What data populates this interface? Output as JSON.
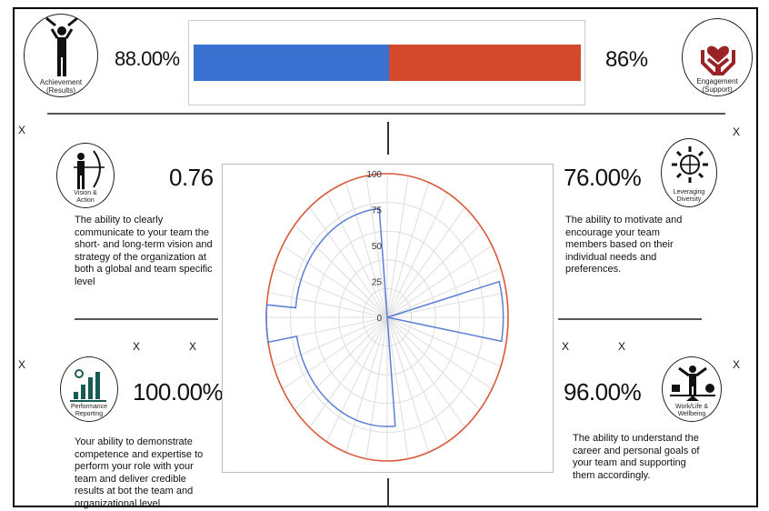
{
  "header": {
    "left_value": "88.00%",
    "right_value": "86%"
  },
  "icons": {
    "achievement": {
      "name": "achievement-person-icon",
      "label1": "Achievement",
      "label2": "(Results)"
    },
    "engagement": {
      "name": "heart-hands-icon",
      "label1": "Engagement",
      "label2": "(Support)"
    },
    "vision": {
      "name": "archer-icon",
      "label1": "Vision &",
      "label2": "Action"
    },
    "diversity": {
      "name": "diversity-globe-icon",
      "label1": "Leveraging",
      "label2": "Diversity"
    },
    "performance": {
      "name": "performance-chart-icon",
      "label1": "Performance",
      "label2": "Reporting"
    },
    "worklife": {
      "name": "balance-person-icon",
      "label1": "Work/Life &",
      "label2": "Wellbeing"
    }
  },
  "quadrants": {
    "vision": {
      "value": "0.76",
      "desc": "The ability to clearly communicate to your team the short- and long-term vision and strategy of the organization at both a global and team specific level"
    },
    "diversity": {
      "value": "76.00%",
      "desc": "The ability to motivate and encourage your team members based on their individual needs and preferences."
    },
    "performance": {
      "value": "100.00%",
      "desc": "Your ability to demonstrate competence and expertise to perform your role with your team and deliver credible results at bot the team and organizational level."
    },
    "worklife": {
      "value": "96.00%",
      "desc": "The ability to understand the career and personal goals of your team and supporting them accordingly."
    }
  },
  "marks": {
    "x": "X"
  },
  "colors": {
    "blue": "#3a70d0",
    "red": "#d2492c",
    "radar_outer": "#d9583a",
    "radar_inner": "#5b7fd6"
  },
  "chart_data": [
    {
      "type": "bar",
      "orientation": "horizontal-stacked",
      "series": [
        {
          "name": "",
          "values": [
            88
          ],
          "color": "#3a70d0"
        },
        {
          "name": "",
          "values": [
            86
          ],
          "color": "#d2492c"
        }
      ],
      "categories": [
        ""
      ]
    },
    {
      "type": "radar",
      "rticks": [
        "0",
        "25",
        "50",
        "75",
        "100"
      ],
      "rlim": [
        0,
        100
      ],
      "spokes": 36,
      "series": [
        {
          "name": "",
          "color": "#d9583a",
          "values": "constant 100"
        },
        {
          "name": "",
          "color": "#5b7fd6",
          "sectors": [
            {
              "from_deg": -5,
              "to_deg": 75,
              "value": 0
            },
            {
              "from_deg": 75,
              "to_deg": 100,
              "value": 96
            },
            {
              "from_deg": 100,
              "to_deg": 175,
              "value": 0
            },
            {
              "from_deg": 175,
              "to_deg": 260,
              "value": 76
            },
            {
              "from_deg": 260,
              "to_deg": 275,
              "value": 100
            },
            {
              "from_deg": 275,
              "to_deg": 355,
              "value": 76
            }
          ]
        }
      ]
    }
  ]
}
